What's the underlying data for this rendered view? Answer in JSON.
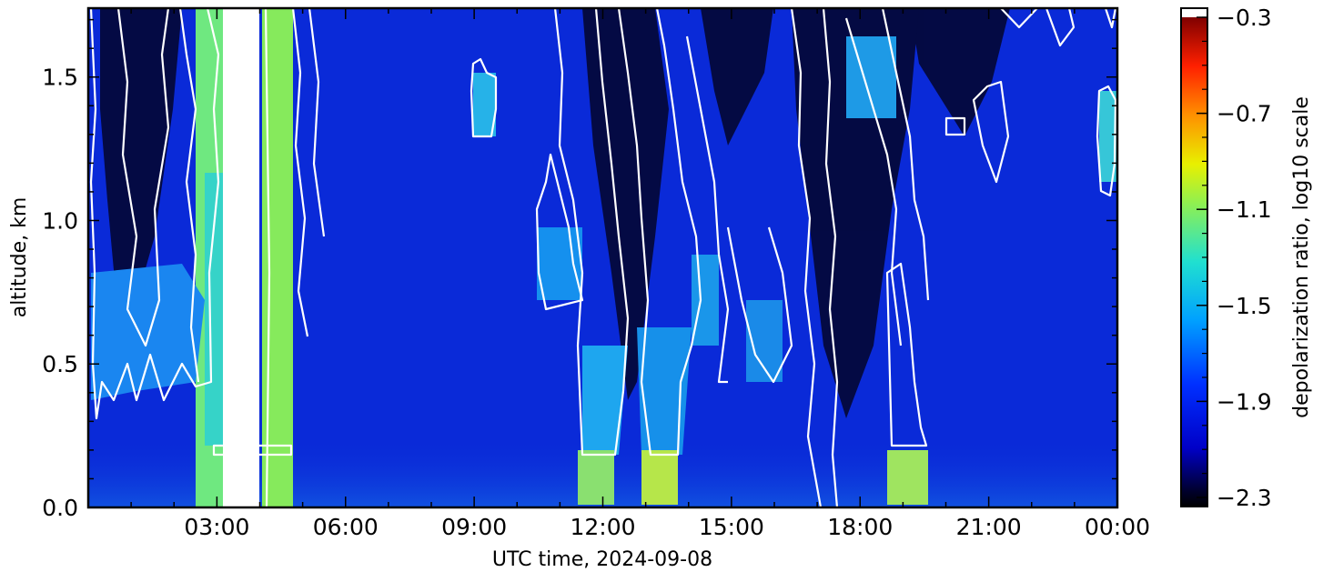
{
  "chart_data": {
    "type": "heatmap",
    "title": "",
    "xlabel": "UTC time,  2024-09-08",
    "ylabel": "altitude, km",
    "x_tick_labels": [
      "03:00",
      "06:00",
      "09:00",
      "12:00",
      "15:00",
      "18:00",
      "21:00",
      "00:00"
    ],
    "x_tick_hours": [
      3,
      6,
      9,
      12,
      15,
      18,
      21,
      24
    ],
    "xlim_hours": [
      0,
      24
    ],
    "y_tick_labels": [
      "0.0",
      "0.5",
      "1.0",
      "1.5"
    ],
    "y_tick_values": [
      0.0,
      0.5,
      1.0,
      1.5
    ],
    "ylim_km": [
      0.0,
      1.74
    ],
    "colorbar": {
      "label": "depolarization ratio, log10 scale",
      "tick_labels": [
        "−0.3",
        "−0.7",
        "−1.1",
        "−1.5",
        "−1.9",
        "−2.3"
      ],
      "tick_values": [
        -0.3,
        -0.7,
        -1.1,
        -1.5,
        -1.9,
        -2.3
      ],
      "range": [
        -2.3,
        -0.3
      ],
      "colormap": "jet-like (black at low end, white above max)"
    },
    "overlay": "white cloud-mask contours",
    "colors": {
      "background_field": "#0a2ad8",
      "contour": "#ffffff",
      "frame": "#000000"
    }
  }
}
